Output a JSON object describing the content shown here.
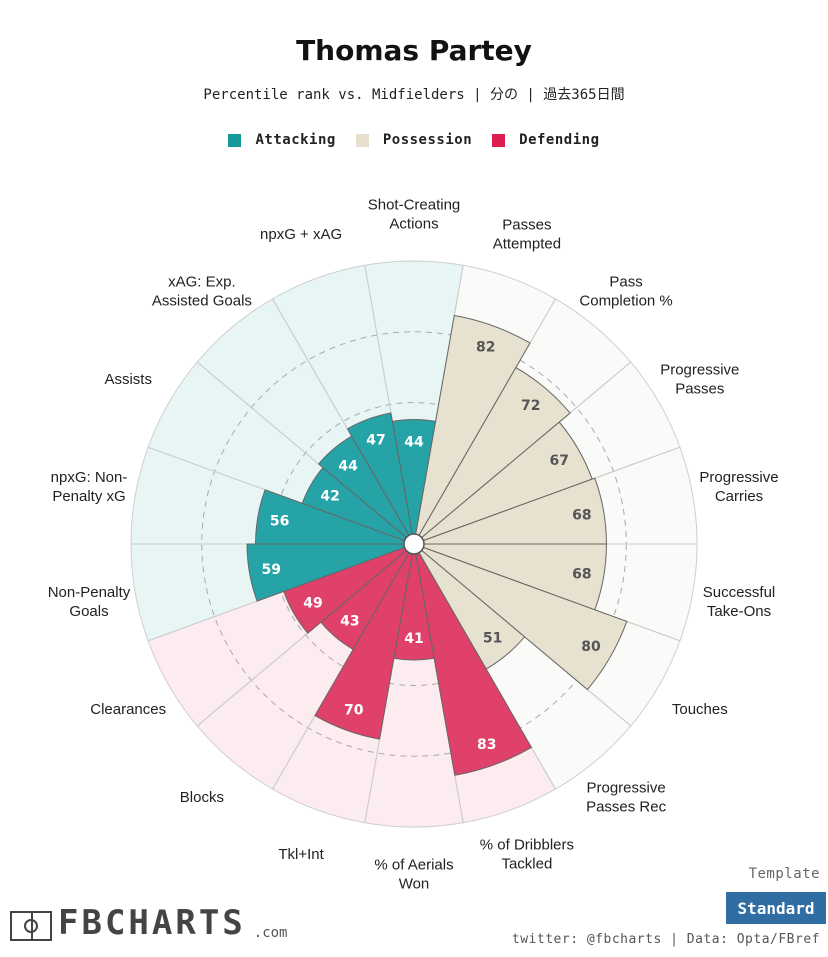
{
  "header": {
    "title": "Thomas Partey",
    "subtitle": "Percentile rank vs. Midfielders | 分の | 過去365日間"
  },
  "legend": {
    "attacking": "Attacking",
    "possession": "Possession",
    "defending": "Defending"
  },
  "colors": {
    "attacking": "#26a3a6",
    "attacking_bg": "#e8f5f5",
    "possession": "#e7e1d0",
    "possession_bg": "#fafaf8",
    "defending": "#e0416a",
    "defending_bg": "#fcebef",
    "grid": "#bbbbbb",
    "bar_stroke": "#666666"
  },
  "chart_data": {
    "type": "polar_bar",
    "title": "Thomas Partey",
    "rlim": [
      0,
      100
    ],
    "gridlines": [
      25,
      50,
      75
    ],
    "metrics": [
      {
        "label": "Shot-Creating Actions",
        "value": 44,
        "group": "attacking"
      },
      {
        "label": "Passes Attempted",
        "value": 82,
        "group": "possession"
      },
      {
        "label": "Pass Completion %",
        "value": 72,
        "group": "possession"
      },
      {
        "label": "Progressive Passes",
        "value": 67,
        "group": "possession"
      },
      {
        "label": "Progressive Carries",
        "value": 68,
        "group": "possession"
      },
      {
        "label": "Successful Take-Ons",
        "value": 68,
        "group": "possession"
      },
      {
        "label": "Touches",
        "value": 80,
        "group": "possession"
      },
      {
        "label": "Progressive Passes Rec",
        "value": 51,
        "group": "possession"
      },
      {
        "label": "% of Dribblers Tackled",
        "value": 83,
        "group": "defending"
      },
      {
        "label": "% of Aerials Won",
        "value": 41,
        "group": "defending"
      },
      {
        "label": "Tkl+Int",
        "value": 70,
        "group": "defending"
      },
      {
        "label": "Blocks",
        "value": 43,
        "group": "defending"
      },
      {
        "label": "Clearances",
        "value": 49,
        "group": "defending"
      },
      {
        "label": "Non-Penalty Goals",
        "value": 59,
        "group": "attacking"
      },
      {
        "label": "npxG: Non-Penalty xG",
        "value": 56,
        "group": "attacking"
      },
      {
        "label": "Assists",
        "value": 42,
        "group": "attacking"
      },
      {
        "label": "xAG: Exp. Assisted Goals",
        "value": 44,
        "group": "attacking"
      },
      {
        "label": "npxG + xAG",
        "value": 47,
        "group": "attacking"
      }
    ],
    "display_labels": [
      [
        "Shot-Creating",
        "Actions"
      ],
      [
        "Passes",
        "Attempted"
      ],
      [
        "Pass",
        "Completion %"
      ],
      [
        "Progressive",
        "Passes"
      ],
      [
        "Progressive",
        "Carries"
      ],
      [
        "Successful",
        "Take-Ons"
      ],
      [
        "Touches"
      ],
      [
        "Progressive",
        "Passes Rec"
      ],
      [
        "% of Dribblers",
        "Tackled"
      ],
      [
        "% of Aerials",
        "Won"
      ],
      [
        "Tkl+Int"
      ],
      [
        "Blocks"
      ],
      [
        "Clearances"
      ],
      [
        "Non-Penalty",
        "Goals"
      ],
      [
        "npxG: Non-",
        "Penalty xG"
      ],
      [
        "Assists"
      ],
      [
        "xAG: Exp.",
        "Assisted Goals"
      ],
      [
        "npxG + xAG"
      ]
    ]
  },
  "footer": {
    "template_label": "Template",
    "template_button": "Standard",
    "credit": "twitter: @fbcharts | Data: Opta/FBref",
    "logo_text": "FBCHARTS",
    "logo_suffix": ".com"
  }
}
